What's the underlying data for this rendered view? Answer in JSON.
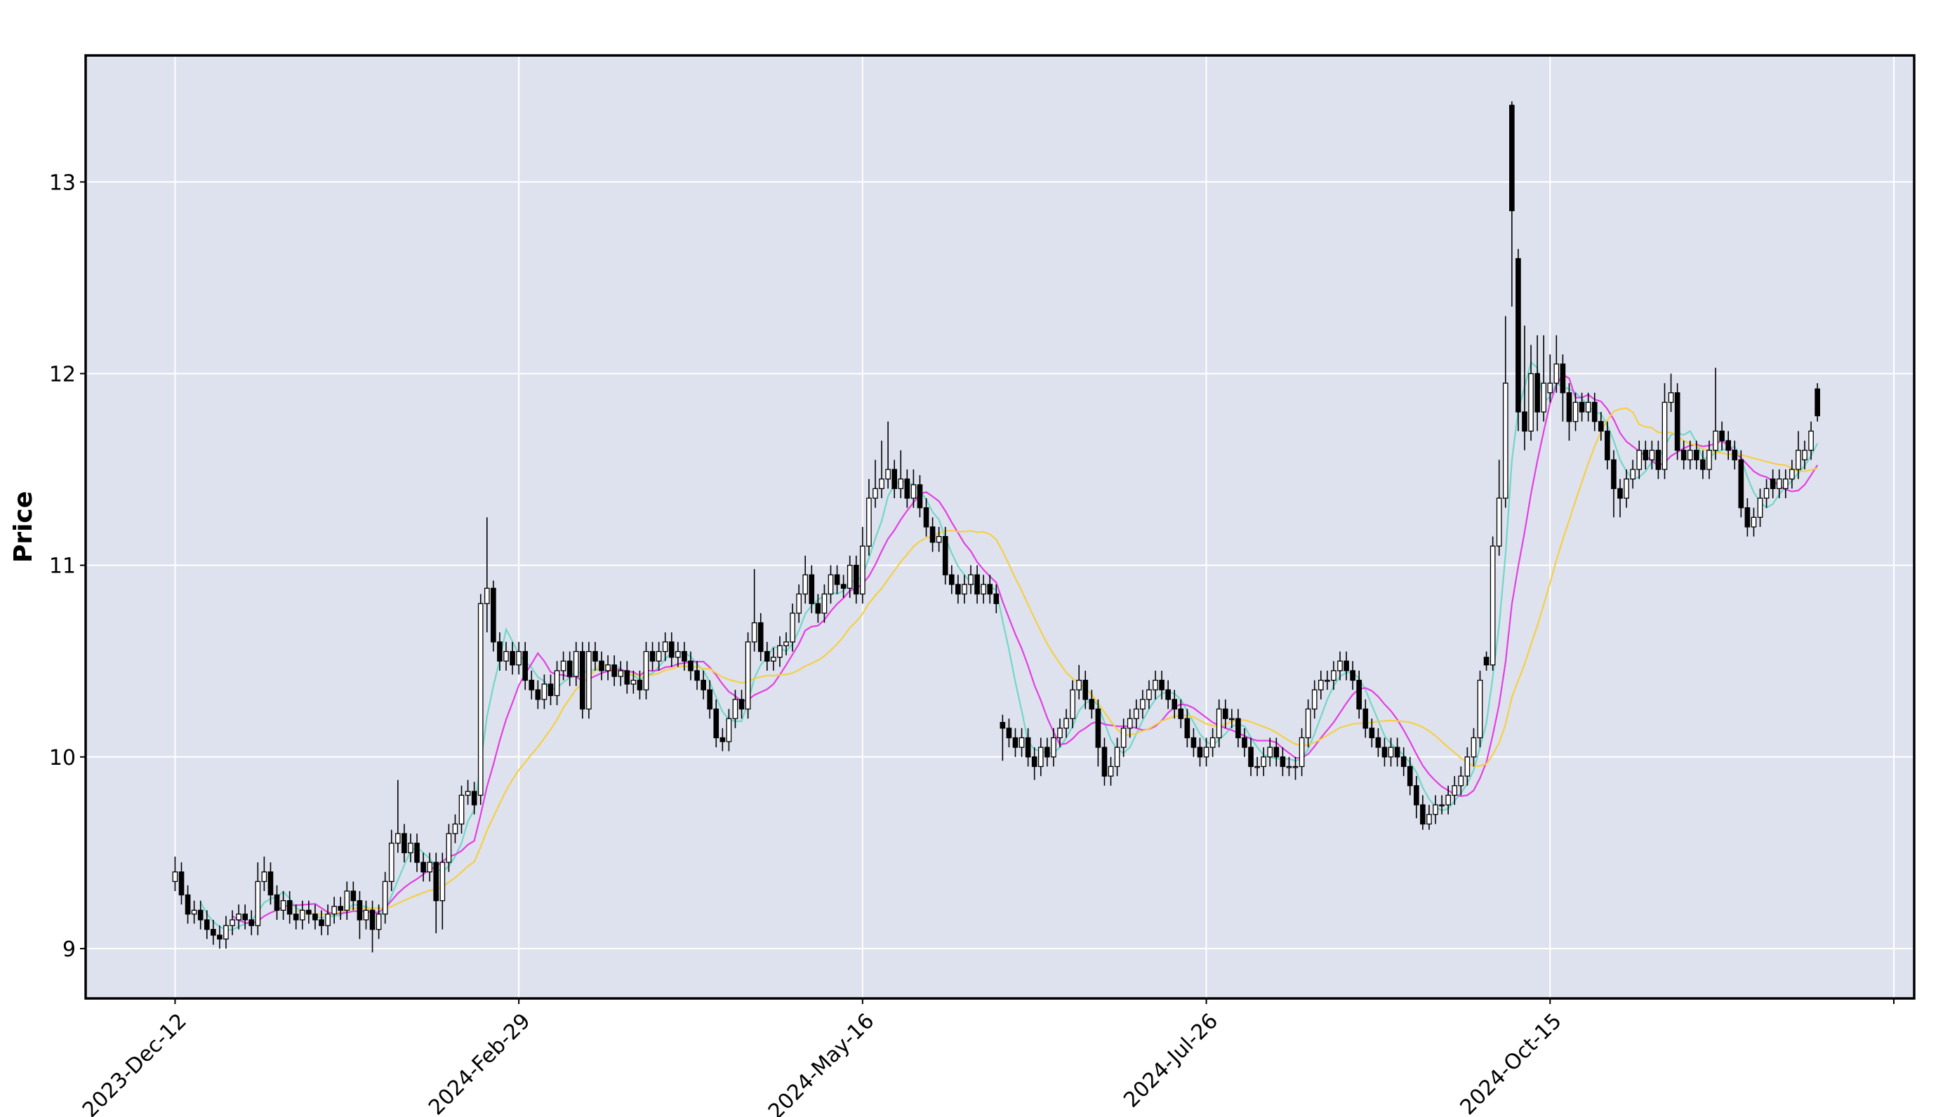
{
  "chart_data": {
    "type": "candlestick",
    "ylabel": "Price",
    "ylim": [
      8.74,
      13.66
    ],
    "yticks": [
      9,
      10,
      11,
      12,
      13
    ],
    "xlim": [
      -14.05,
      273.2
    ],
    "xticks": [
      {
        "value": 0,
        "label": "2023-Dec-12"
      },
      {
        "value": 54,
        "label": "2024-Feb-29"
      },
      {
        "value": 108,
        "label": "2024-May-16"
      },
      {
        "value": 162,
        "label": "2024-Jul-26"
      },
      {
        "value": 216,
        "label": "2024-Oct-15"
      },
      {
        "value": 270,
        "label": null
      }
    ],
    "grid": true,
    "up_color": "#ffffff",
    "down_color": "#000000",
    "edge_color": "#000000",
    "mav": [
      5,
      10,
      20
    ],
    "mav_colors": [
      "#6fd8c8",
      "#e33fe3",
      "#f5cf45"
    ],
    "open": [
      9.35,
      9.4,
      9.28,
      9.18,
      9.2,
      9.15,
      9.1,
      9.07,
      9.05,
      9.12,
      9.15,
      9.18,
      9.15,
      9.12,
      9.35,
      9.4,
      9.28,
      9.2,
      9.25,
      9.18,
      9.15,
      9.2,
      9.18,
      9.15,
      9.12,
      9.18,
      9.22,
      9.2,
      9.3,
      9.25,
      9.15,
      9.2,
      9.1,
      9.18,
      9.35,
      9.55,
      9.6,
      9.5,
      9.55,
      9.45,
      9.4,
      9.45,
      9.25,
      9.45,
      9.6,
      9.65,
      9.8,
      9.82,
      9.8,
      10.8,
      10.88,
      10.6,
      10.5,
      10.55,
      10.48,
      10.55,
      10.4,
      10.35,
      10.3,
      10.38,
      10.32,
      10.45,
      10.5,
      10.42,
      10.55,
      10.25,
      10.55,
      10.5,
      10.45,
      10.48,
      10.42,
      10.45,
      10.38,
      10.4,
      10.35,
      10.55,
      10.5,
      10.55,
      10.6,
      10.52,
      10.55,
      10.5,
      10.45,
      10.4,
      10.35,
      10.25,
      10.1,
      10.08,
      10.2,
      10.3,
      10.25,
      10.6,
      10.7,
      10.55,
      10.5,
      10.52,
      10.58,
      10.6,
      10.75,
      10.85,
      10.95,
      10.8,
      10.75,
      10.85,
      10.95,
      10.9,
      10.88,
      11.0,
      10.85,
      11.1,
      11.35,
      11.4,
      11.45,
      11.5,
      11.4,
      11.45,
      11.35,
      11.42,
      11.3,
      11.2,
      11.12,
      11.15,
      10.95,
      10.9,
      10.85,
      10.9,
      10.95,
      10.85,
      10.9,
      10.85,
      10.18,
      10.15,
      10.1,
      10.05,
      10.1,
      10.0,
      9.95,
      10.05,
      10.0,
      10.1,
      10.15,
      10.2,
      10.35,
      10.4,
      10.3,
      10.25,
      10.05,
      9.9,
      9.95,
      10.05,
      10.15,
      10.2,
      10.25,
      10.3,
      10.35,
      10.4,
      10.35,
      10.3,
      10.25,
      10.2,
      10.1,
      10.05,
      10.0,
      10.05,
      10.1,
      10.25,
      10.2,
      10.2,
      10.1,
      10.05,
      9.95,
      9.95,
      10.0,
      10.05,
      10.0,
      9.95,
      9.95,
      9.95,
      10.1,
      10.25,
      10.35,
      10.4,
      10.4,
      10.45,
      10.5,
      10.45,
      10.4,
      10.25,
      10.15,
      10.1,
      10.05,
      10.0,
      10.05,
      10.0,
      9.95,
      9.85,
      9.75,
      9.65,
      9.7,
      9.75,
      9.75,
      9.8,
      9.85,
      9.9,
      10.0,
      10.1,
      10.52,
      10.48,
      11.1,
      11.35,
      13.4,
      12.6,
      11.8,
      11.7,
      12.0,
      11.8,
      11.9,
      11.95,
      12.05,
      11.9,
      11.75,
      11.85,
      11.8,
      11.85,
      11.75,
      11.7,
      11.55,
      11.4,
      11.35,
      11.45,
      11.5,
      11.6,
      11.55,
      11.6,
      11.5,
      11.85,
      11.9,
      11.6,
      11.55,
      11.6,
      11.55,
      11.5,
      11.6,
      11.7,
      11.65,
      11.6,
      11.55,
      11.3,
      11.2,
      11.25,
      11.35,
      11.45,
      11.4,
      11.4,
      11.45,
      11.5,
      11.55,
      11.6,
      11.92
    ],
    "high": [
      9.48,
      9.45,
      9.33,
      9.25,
      9.25,
      9.2,
      9.15,
      9.12,
      9.17,
      9.2,
      9.23,
      9.23,
      9.2,
      9.45,
      9.48,
      9.45,
      9.33,
      9.3,
      9.3,
      9.23,
      9.25,
      9.25,
      9.23,
      9.2,
      9.23,
      9.27,
      9.27,
      9.35,
      9.35,
      9.3,
      9.25,
      9.25,
      9.23,
      9.4,
      9.62,
      9.88,
      9.65,
      9.6,
      9.6,
      9.5,
      9.5,
      9.5,
      9.5,
      9.65,
      9.7,
      9.85,
      9.88,
      9.87,
      10.85,
      11.25,
      10.92,
      10.65,
      10.6,
      10.6,
      10.6,
      10.6,
      10.45,
      10.4,
      10.43,
      10.43,
      10.5,
      10.55,
      10.55,
      10.6,
      10.6,
      10.6,
      10.6,
      10.55,
      10.53,
      10.53,
      10.5,
      10.5,
      10.45,
      10.45,
      10.6,
      10.6,
      10.6,
      10.65,
      10.65,
      10.6,
      10.6,
      10.55,
      10.5,
      10.45,
      10.4,
      10.3,
      10.15,
      10.25,
      10.35,
      10.35,
      10.65,
      10.98,
      10.75,
      10.6,
      10.57,
      10.63,
      10.65,
      10.8,
      10.9,
      11.05,
      11.0,
      10.85,
      10.9,
      11.0,
      11.0,
      10.95,
      11.05,
      11.05,
      11.2,
      11.45,
      11.55,
      11.65,
      11.75,
      11.55,
      11.6,
      11.5,
      11.5,
      11.47,
      11.35,
      11.25,
      11.2,
      11.2,
      11.0,
      10.95,
      10.95,
      11.0,
      11.0,
      10.95,
      10.95,
      10.9,
      10.22,
      10.2,
      10.15,
      10.15,
      10.15,
      10.05,
      10.1,
      10.1,
      10.15,
      10.2,
      10.25,
      10.4,
      10.48,
      10.45,
      10.35,
      10.3,
      10.1,
      10.0,
      10.1,
      10.2,
      10.25,
      10.3,
      10.35,
      10.4,
      10.45,
      10.45,
      10.4,
      10.35,
      10.3,
      10.25,
      10.15,
      10.1,
      10.1,
      10.15,
      10.3,
      10.3,
      10.25,
      10.25,
      10.15,
      10.1,
      10.0,
      10.05,
      10.1,
      10.1,
      10.05,
      10.0,
      10.0,
      10.15,
      10.3,
      10.4,
      10.45,
      10.45,
      10.5,
      10.55,
      10.55,
      10.5,
      10.45,
      10.3,
      10.2,
      10.15,
      10.1,
      10.1,
      10.1,
      10.05,
      10.0,
      9.9,
      9.8,
      9.75,
      9.8,
      9.8,
      9.85,
      9.9,
      9.95,
      10.05,
      10.15,
      10.45,
      10.55,
      11.15,
      11.55,
      12.3,
      13.42,
      12.65,
      12.25,
      12.15,
      12.2,
      12.2,
      12.1,
      12.2,
      12.1,
      11.95,
      11.9,
      11.9,
      11.9,
      11.9,
      11.8,
      11.75,
      11.6,
      11.45,
      11.5,
      11.55,
      11.65,
      11.65,
      11.65,
      11.65,
      11.95,
      12.0,
      11.95,
      11.65,
      11.65,
      11.65,
      11.6,
      11.65,
      12.03,
      11.75,
      11.7,
      11.65,
      11.6,
      11.35,
      11.3,
      11.4,
      11.45,
      11.5,
      11.5,
      11.5,
      11.55,
      11.7,
      11.65,
      11.75,
      11.95
    ],
    "low": [
      9.3,
      9.23,
      9.13,
      9.13,
      9.1,
      9.05,
      9.02,
      9.0,
      9.0,
      9.07,
      9.1,
      9.1,
      9.07,
      9.07,
      9.3,
      9.23,
      9.15,
      9.15,
      9.13,
      9.1,
      9.1,
      9.13,
      9.1,
      9.07,
      9.07,
      9.13,
      9.15,
      9.15,
      9.2,
      9.05,
      9.1,
      8.98,
      9.05,
      9.13,
      9.3,
      9.5,
      9.45,
      9.45,
      9.4,
      9.35,
      9.35,
      9.08,
      9.1,
      9.4,
      9.55,
      9.6,
      9.75,
      9.7,
      9.75,
      10.65,
      10.55,
      10.45,
      10.45,
      10.43,
      10.43,
      10.35,
      10.3,
      10.25,
      10.25,
      10.27,
      10.27,
      10.4,
      10.37,
      10.37,
      10.2,
      10.2,
      10.45,
      10.4,
      10.4,
      10.37,
      10.37,
      10.33,
      10.33,
      10.3,
      10.3,
      10.45,
      10.45,
      10.5,
      10.47,
      10.47,
      10.45,
      10.4,
      10.35,
      10.3,
      10.2,
      10.05,
      10.03,
      10.03,
      10.15,
      10.2,
      10.2,
      10.55,
      10.5,
      10.45,
      10.45,
      10.47,
      10.53,
      10.55,
      10.7,
      10.8,
      10.75,
      10.7,
      10.7,
      10.8,
      10.85,
      10.83,
      10.83,
      10.8,
      10.8,
      11.05,
      11.3,
      11.35,
      11.4,
      11.35,
      11.35,
      11.3,
      11.3,
      11.25,
      11.15,
      11.07,
      11.07,
      10.9,
      10.85,
      10.8,
      10.8,
      10.85,
      10.8,
      10.8,
      10.8,
      10.75,
      9.98,
      10.05,
      10.0,
      10.0,
      9.95,
      9.88,
      9.9,
      9.95,
      9.95,
      10.05,
      10.1,
      10.15,
      10.3,
      10.25,
      10.2,
      9.95,
      9.85,
      9.85,
      9.9,
      10.0,
      10.1,
      10.15,
      10.2,
      10.25,
      10.3,
      10.3,
      10.25,
      10.2,
      10.15,
      10.05,
      10.0,
      9.95,
      9.95,
      10.0,
      10.05,
      10.15,
      10.15,
      10.05,
      10.0,
      9.9,
      9.9,
      9.9,
      9.95,
      9.95,
      9.9,
      9.9,
      9.88,
      9.9,
      10.05,
      10.2,
      10.3,
      10.35,
      10.35,
      10.4,
      10.4,
      10.35,
      10.2,
      10.1,
      10.05,
      10.0,
      9.95,
      9.95,
      9.95,
      9.9,
      9.8,
      9.68,
      9.62,
      9.62,
      9.65,
      9.7,
      9.7,
      9.75,
      9.8,
      9.85,
      9.95,
      10.05,
      10.45,
      10.45,
      11.05,
      11.3,
      12.35,
      11.7,
      11.6,
      11.65,
      11.7,
      11.75,
      11.85,
      11.9,
      11.75,
      11.65,
      11.7,
      11.75,
      11.75,
      11.7,
      11.65,
      11.5,
      11.25,
      11.25,
      11.3,
      11.4,
      11.45,
      11.5,
      11.5,
      11.45,
      11.45,
      11.8,
      11.55,
      11.5,
      11.5,
      11.5,
      11.45,
      11.45,
      11.55,
      11.6,
      11.55,
      11.5,
      11.25,
      11.15,
      11.15,
      11.2,
      11.3,
      11.35,
      11.35,
      11.35,
      11.4,
      11.45,
      11.5,
      11.55,
      11.75
    ],
    "close": [
      9.4,
      9.28,
      9.18,
      9.2,
      9.15,
      9.1,
      9.07,
      9.05,
      9.12,
      9.15,
      9.18,
      9.15,
      9.12,
      9.35,
      9.4,
      9.28,
      9.2,
      9.25,
      9.18,
      9.15,
      9.2,
      9.18,
      9.15,
      9.12,
      9.18,
      9.22,
      9.2,
      9.3,
      9.25,
      9.15,
      9.2,
      9.1,
      9.18,
      9.35,
      9.55,
      9.6,
      9.5,
      9.55,
      9.45,
      9.4,
      9.45,
      9.25,
      9.45,
      9.6,
      9.65,
      9.8,
      9.82,
      9.75,
      10.8,
      10.88,
      10.6,
      10.5,
      10.55,
      10.48,
      10.55,
      10.4,
      10.35,
      10.3,
      10.38,
      10.32,
      10.45,
      10.5,
      10.42,
      10.55,
      10.25,
      10.55,
      10.5,
      10.45,
      10.48,
      10.42,
      10.45,
      10.38,
      10.4,
      10.35,
      10.55,
      10.5,
      10.55,
      10.6,
      10.52,
      10.55,
      10.5,
      10.45,
      10.4,
      10.35,
      10.25,
      10.1,
      10.08,
      10.2,
      10.3,
      10.25,
      10.6,
      10.7,
      10.55,
      10.5,
      10.52,
      10.58,
      10.6,
      10.75,
      10.85,
      10.95,
      10.8,
      10.75,
      10.85,
      10.95,
      10.9,
      10.88,
      11.0,
      10.85,
      11.1,
      11.35,
      11.4,
      11.45,
      11.5,
      11.4,
      11.45,
      11.35,
      11.42,
      11.3,
      11.2,
      11.12,
      11.15,
      10.95,
      10.9,
      10.85,
      10.9,
      10.95,
      10.85,
      10.9,
      10.85,
      10.8,
      10.15,
      10.1,
      10.05,
      10.1,
      10.0,
      9.95,
      10.05,
      10.0,
      10.1,
      10.15,
      10.2,
      10.35,
      10.4,
      10.3,
      10.25,
      10.05,
      9.9,
      9.95,
      10.05,
      10.15,
      10.2,
      10.25,
      10.3,
      10.35,
      10.4,
      10.35,
      10.3,
      10.25,
      10.2,
      10.1,
      10.05,
      10.0,
      10.05,
      10.1,
      10.25,
      10.2,
      10.2,
      10.1,
      10.05,
      9.95,
      9.95,
      10.0,
      10.05,
      10.0,
      9.95,
      9.95,
      9.95,
      10.1,
      10.25,
      10.35,
      10.4,
      10.4,
      10.45,
      10.5,
      10.45,
      10.4,
      10.25,
      10.15,
      10.1,
      10.05,
      10.0,
      10.05,
      10.0,
      9.95,
      9.85,
      9.75,
      9.65,
      9.7,
      9.75,
      9.75,
      9.8,
      9.85,
      9.9,
      10.0,
      10.1,
      10.4,
      10.48,
      11.1,
      11.35,
      11.95,
      12.85,
      11.8,
      11.7,
      12.0,
      11.8,
      11.95,
      11.95,
      12.05,
      11.9,
      11.75,
      11.85,
      11.8,
      11.85,
      11.75,
      11.7,
      11.55,
      11.4,
      11.35,
      11.45,
      11.5,
      11.6,
      11.55,
      11.6,
      11.5,
      11.85,
      11.9,
      11.6,
      11.55,
      11.6,
      11.55,
      11.5,
      11.6,
      11.7,
      11.65,
      11.6,
      11.55,
      11.3,
      11.2,
      11.25,
      11.35,
      11.4,
      11.4,
      11.45,
      11.45,
      11.5,
      11.6,
      11.6,
      11.7,
      11.78
    ]
  }
}
